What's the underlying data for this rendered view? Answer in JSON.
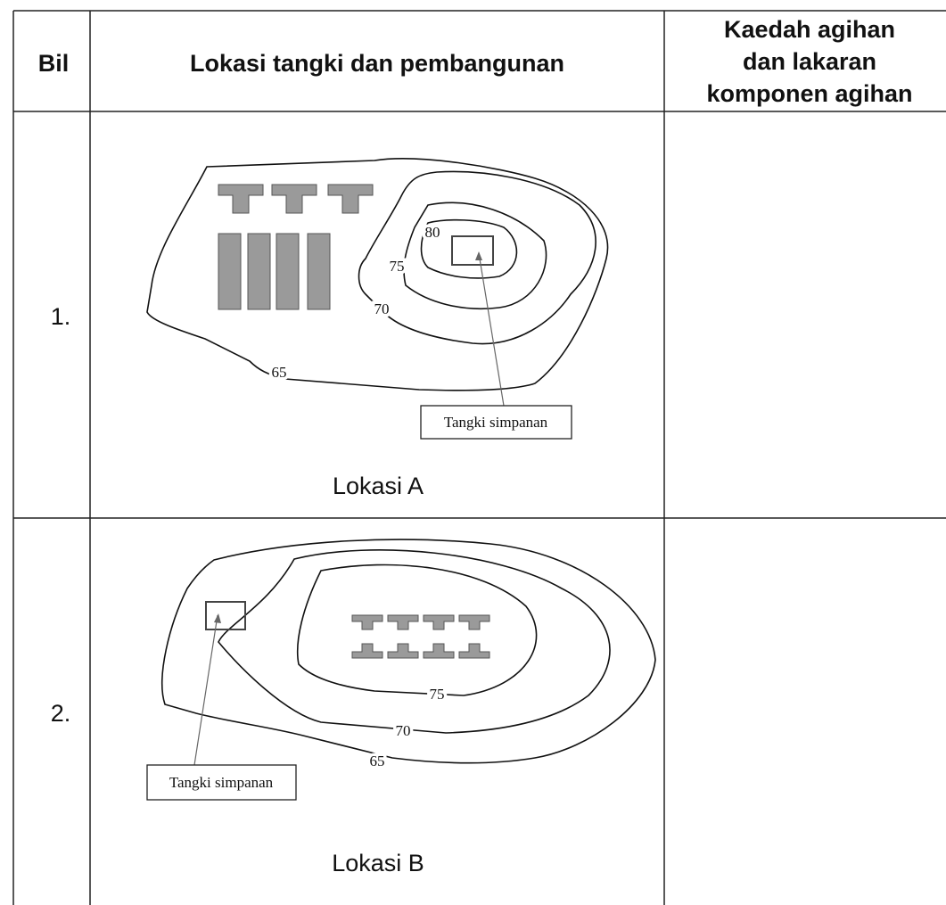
{
  "table": {
    "headers": [
      "Bil",
      "Lokasi tangki dan pembangunan",
      [
        "Kaedah agihan",
        "dan lakaran",
        "komponen agihan"
      ]
    ],
    "rows": [
      {
        "number": "1.",
        "map": {
          "contour_labels": [
            "80",
            "75",
            "70",
            "65"
          ],
          "callout": "Tangki simpanan"
        },
        "caption": "Lokasi A"
      },
      {
        "number": "2.",
        "map": {
          "contour_labels": [
            "75",
            "70",
            "65"
          ],
          "callout": "Tangki simpanan"
        },
        "caption": "Lokasi B"
      }
    ]
  }
}
